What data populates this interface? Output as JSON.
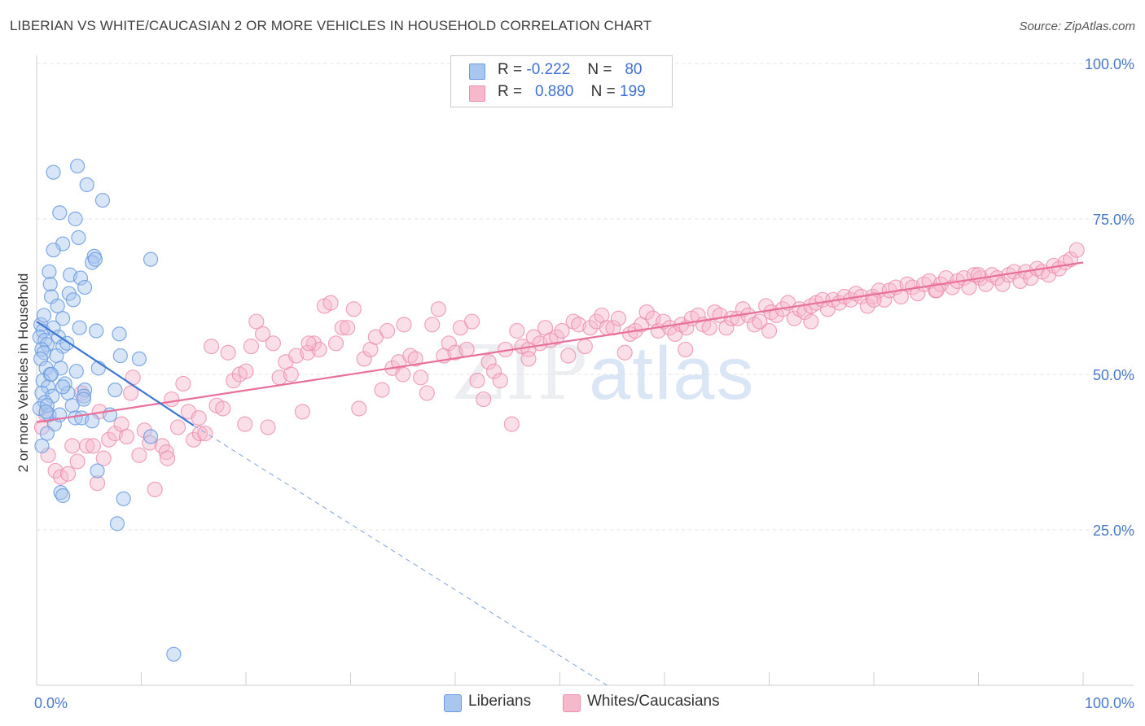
{
  "title": "LIBERIAN VS WHITE/CAUCASIAN 2 OR MORE VEHICLES IN HOUSEHOLD CORRELATION CHART",
  "source": "Source: ZipAtlas.com",
  "watermark": {
    "zip": "ZIP",
    "atlas": "atlas"
  },
  "colors": {
    "blue_fill": "#a9c6ee",
    "blue_stroke": "#6b9be0",
    "blue_line": "#3f78d4",
    "pink_fill": "#f6b9cc",
    "pink_stroke": "#ec8fab",
    "pink_line": "#e8709a",
    "tick_text": "#4a78c7",
    "grid": "#e3e3e3"
  },
  "legend": {
    "rows": [
      {
        "r_label": "R =",
        "r_value": "-0.222",
        "n_label": "N =",
        "n_value": "80"
      },
      {
        "r_label": "R =",
        "r_value": "0.880",
        "n_label": "N =",
        "n_value": "199"
      }
    ]
  },
  "bottom_legend": {
    "series_a": "Liberians",
    "series_b": "Whites/Caucasians"
  },
  "chart_data": {
    "type": "scatter",
    "title": "LIBERIAN VS WHITE/CAUCASIAN 2 OR MORE VEHICLES IN HOUSEHOLD CORRELATION CHART",
    "xlabel": "",
    "ylabel": "2 or more Vehicles in Household",
    "xlim": [
      0,
      100
    ],
    "ylim": [
      0,
      100
    ],
    "x_tick_labels": [
      "0.0%",
      "100.0%"
    ],
    "y_tick_labels": [
      "100.0%",
      "75.0%",
      "50.0%",
      "25.0%"
    ],
    "y_ticks": [
      100,
      75,
      50,
      25
    ],
    "grid": true,
    "series": [
      {
        "name": "Liberians",
        "r": -0.222,
        "n": 80,
        "trend": {
          "x0": 0.0,
          "y0": 58.5,
          "x1": 15.0,
          "y1": 41.8,
          "dashed_to_x": 54.5,
          "dashed_to_y": 0.0
        },
        "points": [
          [
            0.4,
            58.0
          ],
          [
            0.6,
            57.0
          ],
          [
            0.3,
            56.0
          ],
          [
            0.8,
            55.5
          ],
          [
            1.0,
            54.8
          ],
          [
            0.5,
            54.0
          ],
          [
            0.7,
            53.5
          ],
          [
            0.4,
            52.5
          ],
          [
            0.9,
            51.0
          ],
          [
            1.3,
            50.0
          ],
          [
            0.6,
            49.0
          ],
          [
            1.1,
            48.0
          ],
          [
            0.5,
            47.0
          ],
          [
            1.5,
            46.5
          ],
          [
            0.8,
            45.5
          ],
          [
            0.3,
            44.5
          ],
          [
            1.2,
            43.5
          ],
          [
            1.7,
            42.0
          ],
          [
            1.0,
            40.5
          ],
          [
            0.5,
            38.5
          ],
          [
            0.7,
            59.5
          ],
          [
            1.6,
            57.5
          ],
          [
            2.1,
            56.0
          ],
          [
            2.5,
            54.5
          ],
          [
            1.9,
            53.0
          ],
          [
            2.3,
            51.0
          ],
          [
            1.4,
            50.0
          ],
          [
            2.7,
            48.5
          ],
          [
            3.0,
            47.0
          ],
          [
            3.4,
            45.0
          ],
          [
            2.2,
            43.5
          ],
          [
            3.7,
            43.0
          ],
          [
            4.3,
            43.0
          ],
          [
            5.3,
            42.5
          ],
          [
            1.6,
            82.5
          ],
          [
            3.9,
            83.5
          ],
          [
            4.8,
            80.5
          ],
          [
            6.3,
            78.0
          ],
          [
            2.2,
            76.0
          ],
          [
            3.7,
            75.0
          ],
          [
            4.0,
            72.0
          ],
          [
            2.5,
            71.0
          ],
          [
            1.6,
            70.0
          ],
          [
            5.5,
            69.0
          ],
          [
            5.3,
            68.0
          ],
          [
            5.6,
            68.5
          ],
          [
            1.2,
            66.5
          ],
          [
            3.2,
            66.0
          ],
          [
            4.2,
            65.5
          ],
          [
            1.3,
            64.5
          ],
          [
            4.6,
            64.0
          ],
          [
            3.1,
            63.0
          ],
          [
            1.4,
            62.5
          ],
          [
            3.5,
            62.0
          ],
          [
            2.0,
            61.0
          ],
          [
            2.5,
            59.0
          ],
          [
            4.1,
            57.5
          ],
          [
            5.7,
            57.0
          ],
          [
            7.9,
            56.5
          ],
          [
            2.9,
            55.0
          ],
          [
            5.9,
            51.0
          ],
          [
            3.8,
            50.5
          ],
          [
            8.0,
            53.0
          ],
          [
            9.8,
            52.5
          ],
          [
            4.6,
            47.5
          ],
          [
            7.5,
            47.5
          ],
          [
            4.5,
            46.5
          ],
          [
            4.5,
            46.0
          ],
          [
            7.0,
            43.5
          ],
          [
            10.9,
            40.0
          ],
          [
            5.8,
            34.5
          ],
          [
            2.3,
            31.0
          ],
          [
            2.5,
            30.5
          ],
          [
            8.3,
            30.0
          ],
          [
            7.7,
            26.0
          ],
          [
            13.1,
            5.0
          ],
          [
            10.9,
            68.5
          ],
          [
            1.0,
            45.0
          ],
          [
            2.5,
            48.0
          ],
          [
            0.9,
            44.0
          ]
        ]
      },
      {
        "name": "Whites/Caucasians",
        "r": 0.88,
        "n": 199,
        "trend": {
          "x0": 0.0,
          "y0": 42.3,
          "x1": 100.0,
          "y1": 68.0
        },
        "points": [
          [
            0.5,
            41.5
          ],
          [
            0.9,
            43.5
          ],
          [
            1.1,
            37.0
          ],
          [
            1.8,
            34.5
          ],
          [
            2.3,
            33.5
          ],
          [
            3.0,
            34.0
          ],
          [
            3.4,
            38.5
          ],
          [
            3.9,
            36.0
          ],
          [
            4.3,
            47.0
          ],
          [
            4.8,
            38.5
          ],
          [
            5.4,
            38.5
          ],
          [
            5.8,
            32.5
          ],
          [
            6.4,
            36.5
          ],
          [
            6.9,
            39.5
          ],
          [
            7.5,
            40.5
          ],
          [
            8.1,
            42.0
          ],
          [
            8.6,
            40.0
          ],
          [
            9.2,
            49.5
          ],
          [
            9.8,
            37.0
          ],
          [
            10.3,
            41.0
          ],
          [
            10.8,
            39.0
          ],
          [
            11.3,
            31.5
          ],
          [
            12.0,
            38.5
          ],
          [
            12.4,
            37.5
          ],
          [
            12.9,
            46.0
          ],
          [
            13.5,
            41.5
          ],
          [
            14.0,
            48.5
          ],
          [
            14.5,
            44.0
          ],
          [
            15.0,
            39.5
          ],
          [
            15.6,
            40.5
          ],
          [
            16.1,
            40.5
          ],
          [
            16.7,
            54.5
          ],
          [
            17.2,
            45.0
          ],
          [
            17.8,
            44.5
          ],
          [
            18.3,
            53.5
          ],
          [
            18.8,
            49.0
          ],
          [
            19.4,
            50.0
          ],
          [
            19.9,
            42.0
          ],
          [
            20.5,
            54.5
          ],
          [
            21.0,
            58.5
          ],
          [
            21.6,
            56.5
          ],
          [
            22.1,
            41.5
          ],
          [
            22.6,
            55.0
          ],
          [
            23.2,
            49.5
          ],
          [
            23.8,
            52.0
          ],
          [
            24.3,
            50.0
          ],
          [
            24.8,
            53.0
          ],
          [
            25.4,
            44.0
          ],
          [
            25.9,
            53.5
          ],
          [
            26.5,
            55.0
          ],
          [
            27.0,
            54.0
          ],
          [
            27.5,
            61.0
          ],
          [
            28.1,
            61.5
          ],
          [
            28.6,
            55.0
          ],
          [
            29.2,
            57.5
          ],
          [
            29.7,
            57.5
          ],
          [
            30.3,
            60.5
          ],
          [
            30.8,
            44.5
          ],
          [
            31.3,
            52.5
          ],
          [
            31.9,
            54.0
          ],
          [
            32.4,
            56.0
          ],
          [
            33.0,
            47.5
          ],
          [
            33.5,
            57.0
          ],
          [
            34.0,
            51.0
          ],
          [
            34.6,
            52.0
          ],
          [
            35.1,
            58.0
          ],
          [
            35.7,
            53.0
          ],
          [
            36.2,
            52.5
          ],
          [
            36.7,
            49.5
          ],
          [
            37.3,
            47.0
          ],
          [
            37.8,
            58.0
          ],
          [
            38.4,
            60.5
          ],
          [
            38.9,
            53.0
          ],
          [
            39.4,
            55.0
          ],
          [
            40.0,
            53.5
          ],
          [
            40.5,
            57.5
          ],
          [
            41.1,
            54.0
          ],
          [
            41.6,
            58.5
          ],
          [
            42.1,
            49.0
          ],
          [
            42.7,
            46.0
          ],
          [
            43.2,
            52.0
          ],
          [
            43.7,
            50.5
          ],
          [
            44.3,
            49.0
          ],
          [
            44.8,
            54.0
          ],
          [
            45.4,
            42.0
          ],
          [
            45.9,
            57.0
          ],
          [
            46.4,
            54.5
          ],
          [
            47.0,
            54.0
          ],
          [
            47.5,
            56.0
          ],
          [
            48.1,
            55.0
          ],
          [
            48.6,
            57.5
          ],
          [
            49.1,
            55.5
          ],
          [
            49.7,
            56.0
          ],
          [
            50.2,
            57.0
          ],
          [
            50.8,
            53.0
          ],
          [
            51.3,
            58.5
          ],
          [
            51.8,
            58.0
          ],
          [
            52.4,
            54.5
          ],
          [
            52.9,
            57.5
          ],
          [
            53.5,
            58.5
          ],
          [
            54.0,
            59.5
          ],
          [
            54.5,
            57.5
          ],
          [
            55.1,
            57.5
          ],
          [
            55.6,
            59.0
          ],
          [
            56.2,
            53.5
          ],
          [
            56.7,
            56.5
          ],
          [
            57.2,
            57.0
          ],
          [
            57.8,
            58.0
          ],
          [
            58.3,
            60.0
          ],
          [
            58.9,
            59.0
          ],
          [
            59.4,
            57.0
          ],
          [
            59.9,
            58.5
          ],
          [
            60.5,
            57.5
          ],
          [
            61.0,
            56.5
          ],
          [
            61.6,
            58.0
          ],
          [
            62.1,
            57.5
          ],
          [
            62.6,
            59.0
          ],
          [
            63.2,
            59.5
          ],
          [
            63.7,
            58.0
          ],
          [
            64.3,
            57.5
          ],
          [
            64.8,
            60.0
          ],
          [
            65.3,
            59.5
          ],
          [
            65.9,
            57.5
          ],
          [
            66.4,
            59.0
          ],
          [
            67.0,
            59.0
          ],
          [
            67.5,
            60.5
          ],
          [
            68.0,
            59.5
          ],
          [
            68.6,
            58.0
          ],
          [
            69.1,
            58.5
          ],
          [
            69.7,
            61.0
          ],
          [
            70.2,
            60.0
          ],
          [
            70.7,
            59.5
          ],
          [
            71.3,
            60.5
          ],
          [
            71.8,
            61.5
          ],
          [
            72.4,
            59.0
          ],
          [
            72.9,
            60.5
          ],
          [
            73.4,
            60.0
          ],
          [
            74.0,
            61.0
          ],
          [
            74.5,
            61.5
          ],
          [
            75.1,
            62.0
          ],
          [
            75.6,
            60.5
          ],
          [
            76.1,
            62.0
          ],
          [
            76.7,
            61.5
          ],
          [
            77.2,
            62.5
          ],
          [
            77.8,
            62.0
          ],
          [
            78.3,
            63.0
          ],
          [
            78.8,
            62.5
          ],
          [
            79.4,
            61.0
          ],
          [
            79.9,
            62.5
          ],
          [
            80.5,
            63.5
          ],
          [
            81.0,
            62.0
          ],
          [
            81.5,
            63.5
          ],
          [
            82.1,
            64.0
          ],
          [
            82.6,
            62.5
          ],
          [
            83.2,
            64.5
          ],
          [
            83.7,
            64.0
          ],
          [
            84.2,
            63.0
          ],
          [
            84.8,
            64.5
          ],
          [
            85.3,
            65.0
          ],
          [
            85.9,
            63.5
          ],
          [
            86.4,
            64.5
          ],
          [
            86.9,
            65.5
          ],
          [
            87.5,
            64.0
          ],
          [
            88.0,
            65.0
          ],
          [
            88.6,
            65.5
          ],
          [
            89.1,
            64.0
          ],
          [
            89.6,
            66.0
          ],
          [
            90.2,
            65.5
          ],
          [
            90.7,
            64.5
          ],
          [
            91.3,
            66.0
          ],
          [
            91.8,
            65.5
          ],
          [
            92.3,
            64.5
          ],
          [
            92.9,
            66.0
          ],
          [
            93.4,
            66.5
          ],
          [
            94.0,
            65.0
          ],
          [
            94.5,
            66.5
          ],
          [
            95.0,
            65.5
          ],
          [
            95.6,
            67.0
          ],
          [
            96.1,
            66.5
          ],
          [
            96.7,
            66.0
          ],
          [
            97.2,
            67.5
          ],
          [
            97.7,
            67.0
          ],
          [
            98.3,
            68.0
          ],
          [
            98.8,
            68.5
          ],
          [
            99.4,
            70.0
          ],
          [
            47.0,
            52.5
          ],
          [
            62.0,
            54.0
          ],
          [
            70.0,
            57.0
          ],
          [
            74.0,
            58.5
          ],
          [
            80.0,
            62.0
          ],
          [
            86.0,
            63.5
          ],
          [
            90.0,
            66.0
          ],
          [
            6.0,
            44.0
          ],
          [
            9.0,
            47.0
          ],
          [
            12.5,
            36.5
          ],
          [
            15.5,
            43.0
          ],
          [
            20.0,
            50.5
          ],
          [
            26.0,
            55.0
          ],
          [
            35.0,
            50.0
          ]
        ]
      }
    ]
  }
}
